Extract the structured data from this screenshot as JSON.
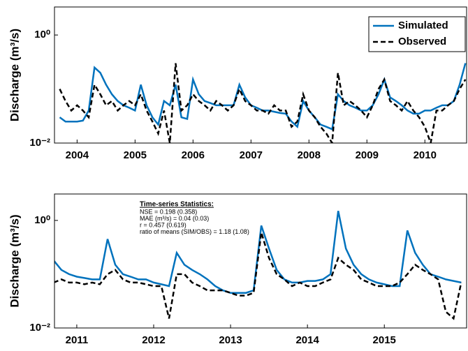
{
  "chart_data": [
    {
      "type": "line",
      "ylabel": "Discharge (m³/s)",
      "log_y": true,
      "legend": "upper right",
      "xlim": [
        2003.61,
        2010.72
      ],
      "xticks": [
        2004,
        2005,
        2006,
        2007,
        2008,
        2009,
        2010
      ],
      "ylim": [
        0.01,
        3.3
      ],
      "yticks": [
        {
          "value": 0.01,
          "label": "10⁻²"
        },
        {
          "value": 1,
          "label": "10⁰"
        }
      ],
      "x": [
        2003.7,
        2003.8,
        2003.9,
        2004.0,
        2004.1,
        2004.2,
        2004.3,
        2004.4,
        2004.5,
        2004.6,
        2004.7,
        2004.8,
        2004.9,
        2005.0,
        2005.1,
        2005.2,
        2005.3,
        2005.4,
        2005.5,
        2005.6,
        2005.7,
        2005.8,
        2005.9,
        2006.0,
        2006.1,
        2006.2,
        2006.3,
        2006.4,
        2006.5,
        2006.6,
        2006.7,
        2006.8,
        2006.9,
        2007.0,
        2007.1,
        2007.2,
        2007.3,
        2007.4,
        2007.5,
        2007.6,
        2007.7,
        2007.8,
        2007.9,
        2008.0,
        2008.1,
        2008.2,
        2008.3,
        2008.4,
        2008.5,
        2008.6,
        2008.7,
        2008.8,
        2008.9,
        2009.0,
        2009.1,
        2009.2,
        2009.3,
        2009.4,
        2009.5,
        2009.6,
        2009.7,
        2009.8,
        2009.9,
        2010.0,
        2010.1,
        2010.2,
        2010.3,
        2010.4,
        2010.5,
        2010.6,
        2010.7
      ],
      "series": [
        {
          "name": "Simulated",
          "color": "#0072bd",
          "dashed": false,
          "values": [
            0.03,
            0.025,
            0.025,
            0.025,
            0.026,
            0.04,
            0.25,
            0.2,
            0.12,
            0.08,
            0.06,
            0.05,
            0.045,
            0.04,
            0.12,
            0.05,
            0.03,
            0.022,
            0.06,
            0.05,
            0.12,
            0.03,
            0.028,
            0.15,
            0.08,
            0.06,
            0.055,
            0.05,
            0.05,
            0.05,
            0.05,
            0.12,
            0.07,
            0.05,
            0.045,
            0.04,
            0.04,
            0.038,
            0.036,
            0.035,
            0.025,
            0.02,
            0.06,
            0.04,
            0.03,
            0.022,
            0.02,
            0.018,
            0.08,
            0.06,
            0.05,
            0.045,
            0.04,
            0.04,
            0.05,
            0.08,
            0.15,
            0.07,
            0.06,
            0.05,
            0.04,
            0.035,
            0.035,
            0.04,
            0.04,
            0.045,
            0.05,
            0.05,
            0.06,
            0.12,
            0.3
          ]
        },
        {
          "name": "Observed",
          "color": "#000000",
          "dashed": true,
          "values": [
            0.1,
            0.06,
            0.04,
            0.05,
            0.04,
            0.03,
            0.12,
            0.08,
            0.05,
            0.06,
            0.04,
            0.05,
            0.06,
            0.05,
            0.08,
            0.04,
            0.025,
            0.015,
            0.04,
            0.01,
            0.3,
            0.04,
            0.05,
            0.08,
            0.06,
            0.05,
            0.04,
            0.06,
            0.05,
            0.04,
            0.05,
            0.1,
            0.06,
            0.05,
            0.04,
            0.04,
            0.035,
            0.05,
            0.04,
            0.04,
            0.02,
            0.025,
            0.08,
            0.04,
            0.03,
            0.02,
            0.015,
            0.01,
            0.2,
            0.05,
            0.06,
            0.05,
            0.04,
            0.03,
            0.05,
            0.1,
            0.15,
            0.06,
            0.05,
            0.04,
            0.06,
            0.04,
            0.03,
            0.02,
            0.01,
            0.04,
            0.04,
            0.05,
            0.06,
            0.1,
            0.15
          ]
        }
      ]
    },
    {
      "type": "line",
      "ylabel": "Discharge (m³/s)",
      "log_y": true,
      "xlim": [
        2010.71,
        2016.07
      ],
      "xticks": [
        2011,
        2012,
        2013,
        2014,
        2015
      ],
      "ylim": [
        0.01,
        3.1
      ],
      "yticks": [
        {
          "value": 0.01,
          "label": "10⁻²"
        },
        {
          "value": 1,
          "label": "10⁰"
        }
      ],
      "annotation_title": "Time-series Statistics:",
      "annotations": [
        "NSE = 0.198 (0.358)",
        "MAE (m³/s) = 0.04 (0.03)",
        "r = 0.457 (0.619)",
        "ratio of means (SIM/OBS) = 1.18 (1.08)"
      ],
      "x": [
        2010.7,
        2010.8,
        2010.9,
        2011.0,
        2011.1,
        2011.2,
        2011.3,
        2011.4,
        2011.5,
        2011.6,
        2011.7,
        2011.8,
        2011.9,
        2012.0,
        2012.1,
        2012.2,
        2012.3,
        2012.4,
        2012.5,
        2012.6,
        2012.7,
        2012.8,
        2012.9,
        2013.0,
        2013.1,
        2013.2,
        2013.3,
        2013.4,
        2013.5,
        2013.6,
        2013.7,
        2013.8,
        2013.9,
        2014.0,
        2014.1,
        2014.2,
        2014.3,
        2014.4,
        2014.5,
        2014.6,
        2014.7,
        2014.8,
        2014.9,
        2015.0,
        2015.1,
        2015.2,
        2015.3,
        2015.4,
        2015.5,
        2015.6,
        2015.7,
        2015.8,
        2015.9,
        2016.0
      ],
      "series": [
        {
          "color": "#0072bd",
          "dashed": false,
          "values": [
            0.18,
            0.12,
            0.1,
            0.09,
            0.085,
            0.08,
            0.08,
            0.45,
            0.15,
            0.1,
            0.09,
            0.08,
            0.08,
            0.07,
            0.065,
            0.06,
            0.25,
            0.15,
            0.12,
            0.1,
            0.08,
            0.06,
            0.05,
            0.045,
            0.045,
            0.045,
            0.05,
            0.8,
            0.3,
            0.12,
            0.08,
            0.07,
            0.07,
            0.075,
            0.075,
            0.08,
            0.1,
            1.5,
            0.3,
            0.15,
            0.1,
            0.08,
            0.07,
            0.065,
            0.06,
            0.06,
            0.65,
            0.25,
            0.15,
            0.1,
            0.09,
            0.08,
            0.075,
            0.07
          ]
        },
        {
          "color": "#000000",
          "dashed": true,
          "values": [
            0.07,
            0.08,
            0.07,
            0.07,
            0.065,
            0.07,
            0.065,
            0.1,
            0.12,
            0.08,
            0.07,
            0.07,
            0.065,
            0.06,
            0.06,
            0.015,
            0.1,
            0.1,
            0.07,
            0.06,
            0.05,
            0.05,
            0.05,
            0.045,
            0.04,
            0.04,
            0.045,
            0.6,
            0.2,
            0.1,
            0.08,
            0.06,
            0.07,
            0.06,
            0.06,
            0.07,
            0.08,
            0.2,
            0.15,
            0.12,
            0.08,
            0.07,
            0.06,
            0.06,
            0.06,
            0.07,
            0.1,
            0.15,
            0.12,
            0.1,
            0.08,
            0.02,
            0.015,
            0.07
          ]
        }
      ]
    }
  ]
}
